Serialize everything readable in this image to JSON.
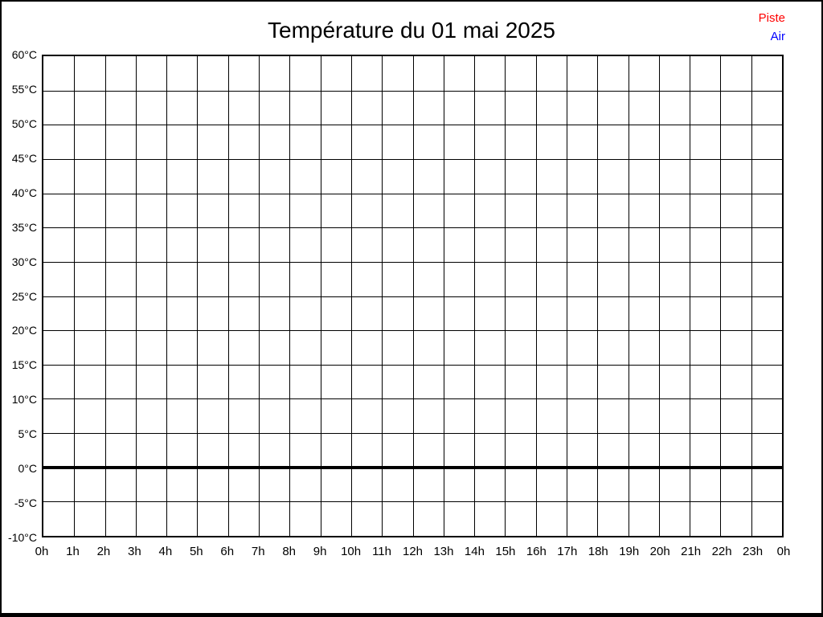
{
  "title": "Température du 01 mai 2025",
  "legend": {
    "position": "top-right",
    "entries": [
      {
        "label": "Piste",
        "color": "#ff0000"
      },
      {
        "label": "Air",
        "color": "#0000ff"
      }
    ]
  },
  "chart_data": {
    "type": "line",
    "title": "Température du 01 mai 2025",
    "xlabel": "",
    "ylabel": "",
    "x_tick_labels": [
      "0h",
      "1h",
      "2h",
      "3h",
      "4h",
      "5h",
      "6h",
      "7h",
      "8h",
      "9h",
      "10h",
      "11h",
      "12h",
      "13h",
      "14h",
      "15h",
      "16h",
      "17h",
      "18h",
      "19h",
      "20h",
      "21h",
      "22h",
      "23h",
      "0h"
    ],
    "y_tick_labels": [
      "60°C",
      "55°C",
      "50°C",
      "45°C",
      "40°C",
      "35°C",
      "30°C",
      "25°C",
      "20°C",
      "15°C",
      "10°C",
      "5°C",
      "0°C",
      "-5°C",
      "-10°C"
    ],
    "ylim": [
      -10,
      60
    ],
    "y_tick_step": 5,
    "grid": true,
    "grid_color": "#000000",
    "zero_line": {
      "value": 0,
      "color": "#000000",
      "thickness_px": 4
    },
    "legend_position": "top-right",
    "series": [
      {
        "name": "Piste",
        "color": "#ff0000",
        "values": []
      },
      {
        "name": "Air",
        "color": "#0000ff",
        "values": []
      }
    ]
  }
}
